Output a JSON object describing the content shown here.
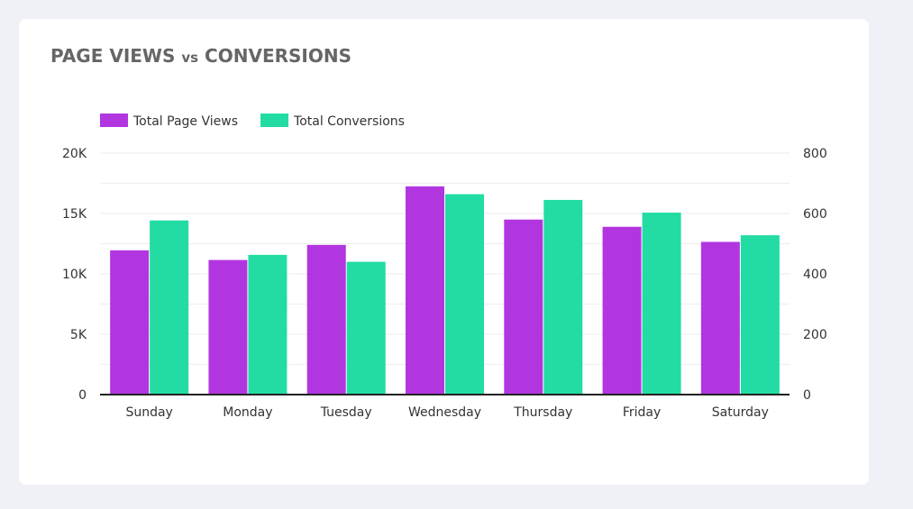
{
  "chart_data": {
    "type": "bar",
    "title_main_1": "PAGE VIEWS",
    "title_vs": "vs",
    "title_main_2": "CONVERSIONS",
    "categories": [
      "Sunday",
      "Monday",
      "Tuesday",
      "Wednesday",
      "Thursday",
      "Friday",
      "Saturday"
    ],
    "series": [
      {
        "name": "Total Page Views",
        "axis": "left",
        "color": "#b236e0",
        "values": [
          11950,
          11150,
          12400,
          17250,
          14500,
          13900,
          12650
        ]
      },
      {
        "name": "Total Conversions",
        "axis": "right",
        "color": "#22dca3",
        "values": [
          577,
          463,
          440,
          664,
          645,
          603,
          528
        ]
      }
    ],
    "y_left": {
      "ylim": [
        0,
        20000
      ],
      "ticks": [
        0,
        5000,
        10000,
        15000,
        20000
      ],
      "tick_labels": [
        "0",
        "5K",
        "10K",
        "15K",
        "20K"
      ]
    },
    "y_right": {
      "ylim": [
        0,
        800
      ],
      "ticks": [
        0,
        200,
        400,
        600,
        800
      ],
      "tick_labels": [
        "0",
        "200",
        "400",
        "600",
        "800"
      ]
    },
    "minor_gridlines": true,
    "legend_position": "top-left",
    "xlabel": "",
    "ylabel": ""
  }
}
